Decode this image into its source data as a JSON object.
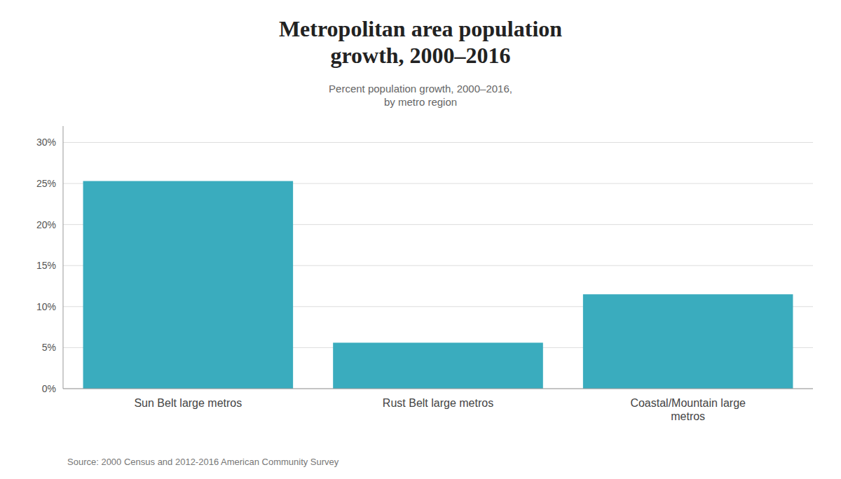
{
  "chart_data": {
    "type": "bar",
    "title": "Metropolitan area population\ngrowth, 2000–2016",
    "subtitle": "Percent population growth, 2000–2016,\nby metro region",
    "source": "Source: 2000 Census and 2012-2016 American Community Survey",
    "categories": [
      "Sun Belt large metros",
      "Rust Belt large metros",
      "Coastal/Mountain large\nmetros"
    ],
    "values": [
      25.3,
      5.6,
      11.5
    ],
    "color": "#3aacbe",
    "ylim": [
      0,
      32
    ],
    "yticks": [
      {
        "value": 0,
        "label": "0%"
      },
      {
        "value": 5,
        "label": "5%"
      },
      {
        "value": 10,
        "label": "10%"
      },
      {
        "value": 15,
        "label": "15%"
      },
      {
        "value": 20,
        "label": "20%"
      },
      {
        "value": 25,
        "label": "25%"
      },
      {
        "value": 30,
        "label": "30%"
      }
    ],
    "grid": true
  }
}
